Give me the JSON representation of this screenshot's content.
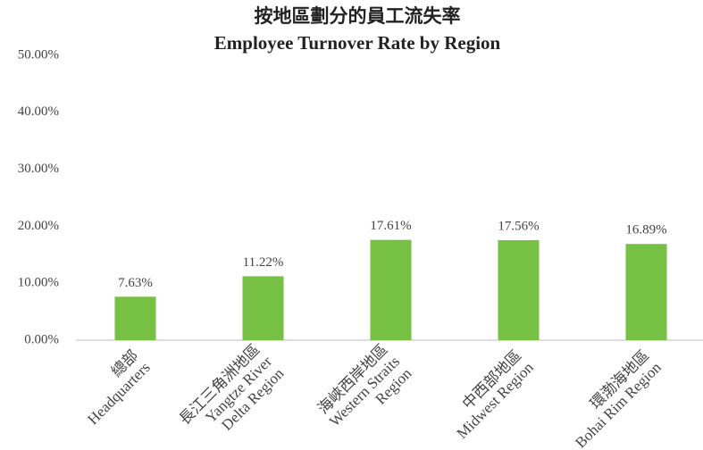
{
  "chart_data": {
    "type": "bar",
    "title": "按地區劃分的員工流失率",
    "subtitle": "Employee Turnover Rate by Region",
    "categories": [
      [
        "總部",
        "Headquarters"
      ],
      [
        "長江三角洲地區",
        "Yangtze River",
        "Delta Region"
      ],
      [
        "海峽西岸地區",
        "Western Straits",
        "Region"
      ],
      [
        "中西部地區",
        "Midwest Region"
      ],
      [
        "環渤海地區",
        "Bohai Rim Region"
      ]
    ],
    "values": [
      7.63,
      11.22,
      17.61,
      17.56,
      16.89
    ],
    "value_labels": [
      "7.63%",
      "11.22%",
      "17.61%",
      "17.56%",
      "16.89%"
    ],
    "color": "#76c043",
    "ylim": [
      0,
      50
    ],
    "yticks": [
      {
        "value": 0,
        "label": "0.00%"
      },
      {
        "value": 10,
        "label": "10.00%"
      },
      {
        "value": 20,
        "label": "20.00%"
      },
      {
        "value": 30,
        "label": "30.00%"
      },
      {
        "value": 40,
        "label": "40.00%"
      },
      {
        "value": 50,
        "label": "50.00%"
      }
    ]
  }
}
